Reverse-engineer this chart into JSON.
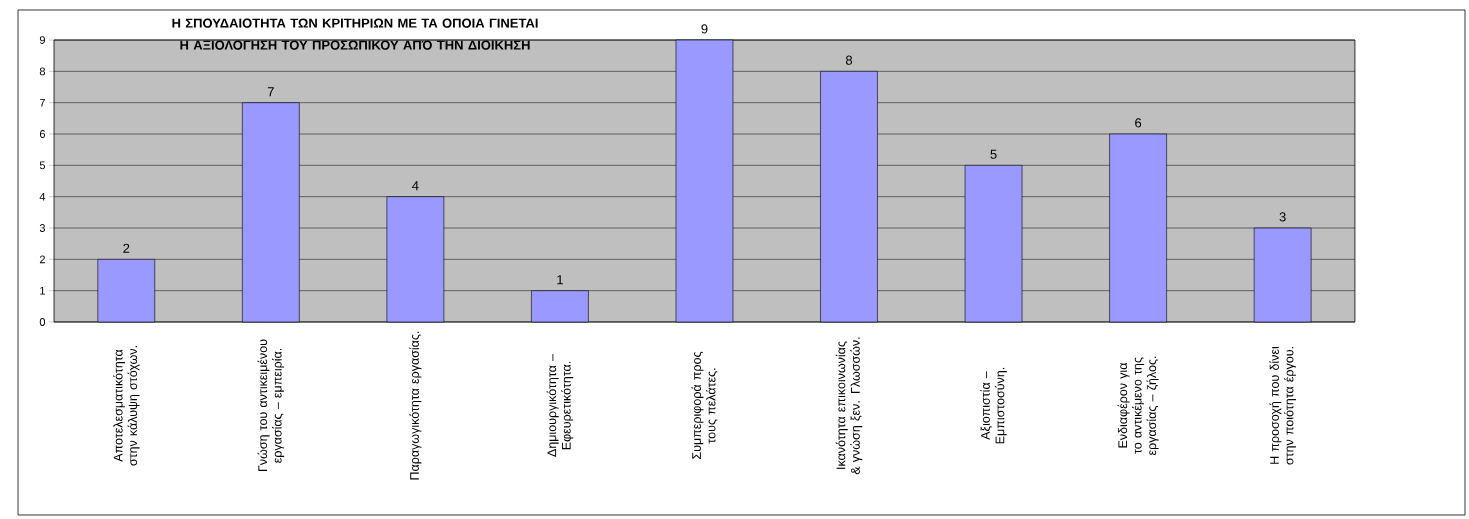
{
  "chart_data": {
    "type": "bar",
    "title": "Η ΣΠΟΥΔΑΙΟΤΗΤΑ ΤΩΝ ΚΡΙΤΗΡΙΩΝ ΜΕ ΤΑ ΟΠΟΙΑ ΓΙΝΕΤΑΙ Η ΑΞΙΟΛΟΓΗΣΗ ΤΟΥ ΠΡΟΣΩΠΙΚΟΥ ΑΠΌ ΤΗΝ ΔΙΟΙΚΗΣΗ",
    "categories": [
      "Αποτελεσματικότητα στην κάλυψη στόχων.",
      "Γνώση του αντικειμένου εργασίας – εμπειρία.",
      "Παραγωγικότητα εργασίας.",
      "Δημιουργικότητα – Εφευρετικότητα.",
      "Συμπεριφορά προς τους πελάτες.",
      "Ικανότητα επικοινωνίας & γνώση ξεν. Γλωσσών.",
      "Αξιοπιστία – Εμπιστοσύνη.",
      "Ενδιαφέρον για το αντικέμενο της εργασίας – ζήλος.",
      "Η προσοχή που δίνει στην ποιότητα έργου."
    ],
    "values": [
      2,
      7,
      4,
      1,
      9,
      8,
      5,
      6,
      3
    ],
    "color": "#9999ff",
    "ylim": [
      0,
      9
    ],
    "yticks": [
      0,
      1,
      2,
      3,
      4,
      5,
      6,
      7,
      8,
      9
    ],
    "grid": "y",
    "data_labels": true
  }
}
